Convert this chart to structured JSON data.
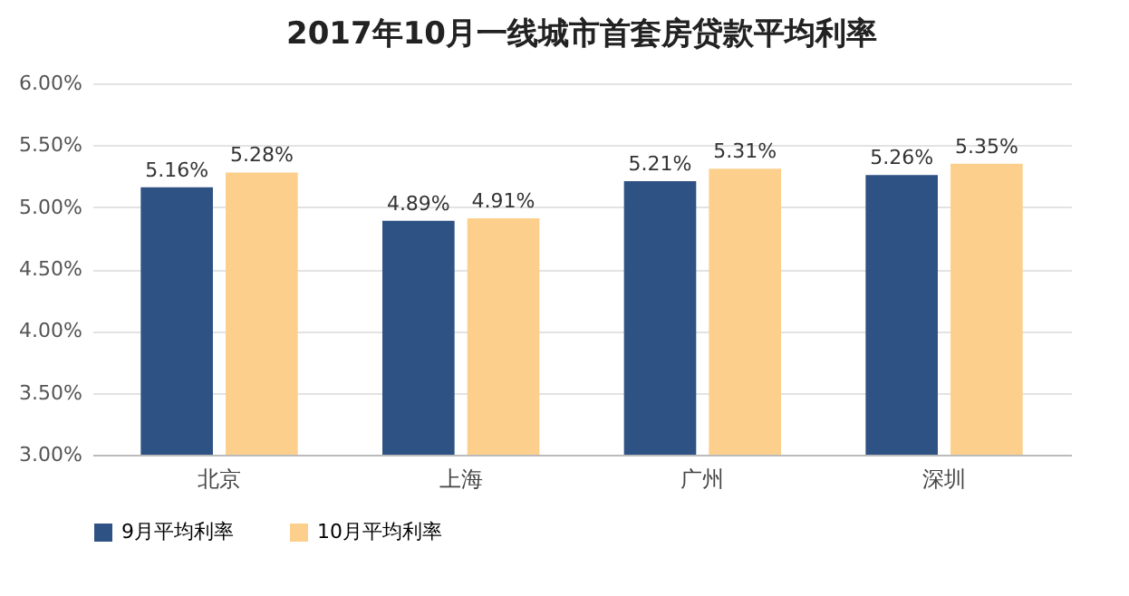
{
  "chart_data": {
    "type": "bar",
    "title": "2017年10月一线城市首套房贷款平均利率",
    "categories": [
      "北京",
      "上海",
      "广州",
      "深圳"
    ],
    "series": [
      {
        "name": "9月平均利率",
        "color": "#2e5283",
        "values": [
          5.16,
          4.89,
          5.21,
          5.26
        ],
        "value_labels": [
          "5.16%",
          "4.89%",
          "5.21%",
          "5.26%"
        ]
      },
      {
        "name": "10月平均利率",
        "color": "#fcd08c",
        "values": [
          5.28,
          4.91,
          5.31,
          5.35
        ],
        "value_labels": [
          "5.28%",
          "4.91%",
          "5.31%",
          "5.35%"
        ]
      }
    ],
    "ylim": [
      3,
      6
    ],
    "yticks": [
      {
        "value": 3,
        "label": "3.00%"
      },
      {
        "value": 3.5,
        "label": "3.50%"
      },
      {
        "value": 4,
        "label": "4.00%"
      },
      {
        "value": 4.5,
        "label": "4.50%"
      },
      {
        "value": 5,
        "label": "5.00%"
      },
      {
        "value": 5.5,
        "label": "5.50%"
      },
      {
        "value": 6,
        "label": "6.00%"
      }
    ],
    "grid": "y",
    "legend": "bottom"
  }
}
